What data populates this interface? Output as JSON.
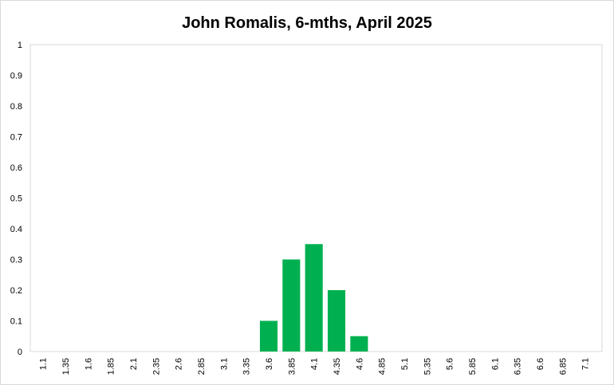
{
  "chart_data": {
    "type": "bar",
    "title": "John Romalis, 6-mths, April 2025",
    "xlabel": "",
    "ylabel": "",
    "categories": [
      "1.1",
      "1.35",
      "1.6",
      "1.85",
      "2.1",
      "2.35",
      "2.6",
      "2.85",
      "3.1",
      "3.35",
      "3.6",
      "3.85",
      "4.1",
      "4.35",
      "4.6",
      "4.85",
      "5.1",
      "5.35",
      "5.6",
      "5.85",
      "6.1",
      "6.35",
      "6.6",
      "6.85",
      "7.1"
    ],
    "values": [
      0,
      0,
      0,
      0,
      0,
      0,
      0,
      0,
      0,
      0,
      0.1,
      0.3,
      0.35,
      0.2,
      0.05,
      0,
      0,
      0,
      0,
      0,
      0,
      0,
      0,
      0,
      0
    ],
    "ylim": [
      0,
      1
    ],
    "yticks": [
      "0",
      "0.1",
      "0.2",
      "0.3",
      "0.4",
      "0.5",
      "0.6",
      "0.7",
      "0.8",
      "0.9",
      "1"
    ],
    "grid": false,
    "legend": "none",
    "bar_color": "#00b050"
  }
}
